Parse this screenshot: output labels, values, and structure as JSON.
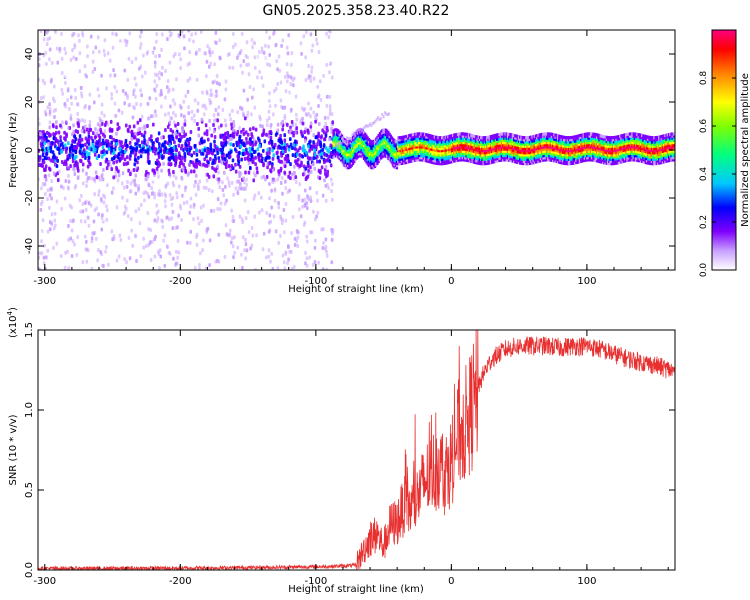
{
  "title": "GN05.2025.358.23.40.R22",
  "chart_data": [
    {
      "type": "heatmap",
      "name": "spectrogram",
      "xlabel": "Height of straight line (km)",
      "ylabel": "Frequency (Hz)",
      "xlim": [
        -305,
        165
      ],
      "ylim": [
        -50,
        50
      ],
      "xticks": [
        -300,
        -200,
        -100,
        0,
        100
      ],
      "yticks": [
        -40,
        -20,
        0,
        20,
        40
      ],
      "xtick_labels": [
        "-300",
        "-200",
        "-100",
        "0",
        "100"
      ],
      "ytick_labels": [
        "-40",
        "-20",
        "0",
        "20",
        "40"
      ],
      "noise_region_km": [
        -305,
        -87
      ],
      "signal_region_km": [
        -87,
        165
      ],
      "signal_center_hz": 0.5,
      "colorbar": {
        "label": "Normalized spectral amplitude",
        "range": [
          0,
          1
        ],
        "ticks": [
          0.0,
          0.2,
          0.4,
          0.6,
          0.8
        ],
        "tick_labels": [
          "0.0",
          "0.2",
          "0.4",
          "0.6",
          "0.8"
        ],
        "colors": [
          "#ffffff",
          "#c8a0ff",
          "#7f00ff",
          "#0000ff",
          "#00c8ff",
          "#00ff80",
          "#80ff00",
          "#ffff00",
          "#ff8000",
          "#ff0000",
          "#ff0080"
        ]
      }
    },
    {
      "type": "line",
      "name": "snr",
      "xlabel": "Height of straight line (km)",
      "ylabel": "SNR (10 * v/v)",
      "scale_label_base": "(x10",
      "scale_label_exp": "4",
      "scale_label_end": ")",
      "xlim": [
        -305,
        165
      ],
      "ylim": [
        0,
        1.5
      ],
      "xticks": [
        -300,
        -200,
        -100,
        0,
        100
      ],
      "yticks": [
        0.0,
        0.5,
        1.0,
        1.5
      ],
      "xtick_labels": [
        "-300",
        "-200",
        "-100",
        "0",
        "100"
      ],
      "ytick_labels": [
        "0.0",
        "0.5",
        "1.0",
        "1.5"
      ],
      "color": "#e83030",
      "series": [
        {
          "name": "SNR",
          "x": [
            -305,
            -250,
            -200,
            -150,
            -100,
            -80,
            -70,
            -65,
            -60,
            -55,
            -50,
            -45,
            -40,
            -35,
            -30,
            -25,
            -20,
            -15,
            -10,
            -5,
            0,
            5,
            10,
            15,
            20,
            25,
            30,
            40,
            50,
            60,
            70,
            80,
            90,
            100,
            110,
            120,
            130,
            140,
            150,
            165
          ],
          "y": [
            0.01,
            0.01,
            0.012,
            0.015,
            0.02,
            0.025,
            0.03,
            0.12,
            0.2,
            0.22,
            0.15,
            0.28,
            0.3,
            0.4,
            0.38,
            0.45,
            0.55,
            0.6,
            0.65,
            0.6,
            0.68,
            0.85,
            0.9,
            1.0,
            1.15,
            1.25,
            1.32,
            1.38,
            1.4,
            1.4,
            1.4,
            1.39,
            1.4,
            1.4,
            1.38,
            1.35,
            1.32,
            1.3,
            1.28,
            1.24
          ]
        }
      ]
    }
  ]
}
